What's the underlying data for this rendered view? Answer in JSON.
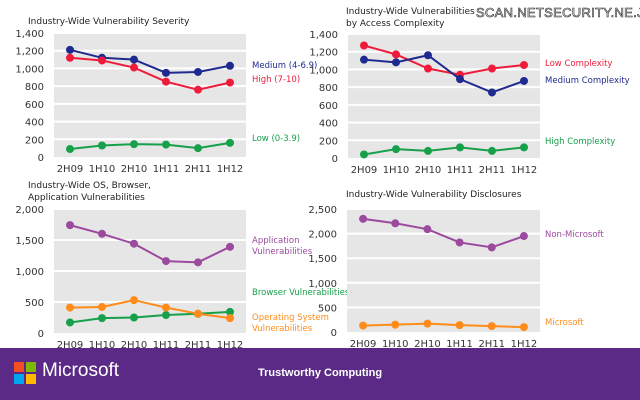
{
  "watermark": "SCAN.NETSECURITY.NE.JP",
  "footer": {
    "brand": "Microsoft",
    "tagline": "Trustworthy Computing",
    "background": "#5b2a86"
  },
  "chart_data": [
    {
      "type": "line",
      "title": "Industry-Wide Vulnerability Severity",
      "categories": [
        "2H09",
        "1H10",
        "2H10",
        "1H11",
        "2H11",
        "1H12"
      ],
      "ylim": [
        0,
        1400
      ],
      "yticks": [
        "0",
        "200",
        "400",
        "600",
        "800",
        "1,000",
        "1,200",
        "1,400"
      ],
      "ytick_values": [
        0,
        200,
        400,
        600,
        800,
        1000,
        1200,
        1400
      ],
      "grid": true,
      "legend": "right",
      "series": [
        {
          "name": "Medium (4-6.9)",
          "color": "#1f2a8f",
          "values": [
            1210,
            1120,
            1100,
            950,
            960,
            1030
          ]
        },
        {
          "name": "High (7-10)",
          "color": "#ee1c3a",
          "values": [
            1120,
            1090,
            1010,
            850,
            760,
            840
          ]
        },
        {
          "name": "Low (0-3.9)",
          "color": "#17a04a",
          "values": [
            90,
            130,
            145,
            140,
            100,
            160
          ]
        }
      ]
    },
    {
      "type": "line",
      "title": "Industry-Wide Vulnerabilities by Access Complexity",
      "title_lines": [
        "Industry-Wide Vulnerabilities",
        "by Access Complexity"
      ],
      "categories": [
        "2H09",
        "1H10",
        "2H10",
        "1H11",
        "2H11",
        "1H12"
      ],
      "ylim": [
        0,
        1400
      ],
      "yticks": [
        "0",
        "200",
        "400",
        "600",
        "800",
        "1,000",
        "1,200",
        "1,400"
      ],
      "ytick_values": [
        0,
        200,
        400,
        600,
        800,
        1000,
        1200,
        1400
      ],
      "grid": true,
      "legend": "right",
      "series": [
        {
          "name": "Low Complexity",
          "color": "#ee1c3a",
          "values": [
            1270,
            1170,
            1010,
            940,
            1010,
            1050
          ]
        },
        {
          "name": "Medium Complexity",
          "color": "#1f2a8f",
          "values": [
            1110,
            1080,
            1160,
            890,
            740,
            870
          ]
        },
        {
          "name": "High Complexity",
          "color": "#17a04a",
          "values": [
            40,
            100,
            80,
            120,
            80,
            120
          ]
        }
      ]
    },
    {
      "type": "line",
      "title": "Industry-Wide OS, Browser, Application Vulnerabilities",
      "title_lines": [
        "Industry-Wide OS, Browser,",
        "Application Vulnerabilities"
      ],
      "categories": [
        "2H09",
        "1H10",
        "2H10",
        "1H11",
        "2H11",
        "1H12"
      ],
      "ylim": [
        0,
        2000
      ],
      "yticks": [
        "0",
        "500",
        "1,000",
        "1,500",
        "2,000"
      ],
      "ytick_values": [
        0,
        500,
        1000,
        1500,
        2000
      ],
      "grid": true,
      "legend": "right",
      "series": [
        {
          "name": "Application Vulnerabilities",
          "label_lines": [
            "Application",
            "Vulnerabilities"
          ],
          "color": "#9b4a9e",
          "values": [
            1740,
            1600,
            1440,
            1160,
            1140,
            1390
          ]
        },
        {
          "name": "Browser Vulnerabilities",
          "label_lines": [
            "Browser Vulnerabilities"
          ],
          "color": "#17a04a",
          "values": [
            170,
            240,
            250,
            290,
            310,
            340
          ]
        },
        {
          "name": "Operating System Vulnerabilities",
          "label_lines": [
            "Operating System",
            "Vulnerabilities"
          ],
          "color": "#ff8c1a",
          "values": [
            410,
            420,
            530,
            410,
            310,
            240
          ]
        }
      ]
    },
    {
      "type": "line",
      "title": "Industry-Wide Vulnerability Disclosures",
      "categories": [
        "2H09",
        "1H10",
        "2H10",
        "1H11",
        "2H11",
        "1H12"
      ],
      "ylim": [
        0,
        2500
      ],
      "yticks": [
        "0",
        "500",
        "1,000",
        "1,500",
        "2,000",
        "2,500"
      ],
      "ytick_values": [
        0,
        500,
        1000,
        1500,
        2000,
        2500
      ],
      "grid": true,
      "legend": "right",
      "series": [
        {
          "name": "Non-Microsoft",
          "color": "#9b4a9e",
          "values": [
            2300,
            2210,
            2090,
            1820,
            1720,
            1950
          ]
        },
        {
          "name": "Microsoft",
          "color": "#ff8c1a",
          "values": [
            130,
            150,
            170,
            140,
            120,
            100
          ]
        }
      ]
    }
  ]
}
